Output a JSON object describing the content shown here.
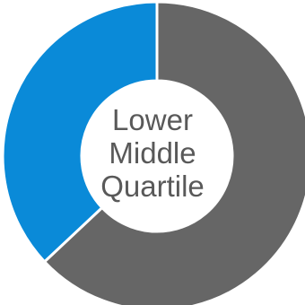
{
  "chart_data": {
    "type": "pie",
    "style": "donut",
    "categories": [
      "",
      ""
    ],
    "values": [
      63,
      37
    ],
    "colors": [
      "#666666",
      "#0a8ad8"
    ],
    "separator_color": "#ffffff",
    "center_label": [
      "Lower",
      "Middle",
      "Quartile"
    ]
  }
}
